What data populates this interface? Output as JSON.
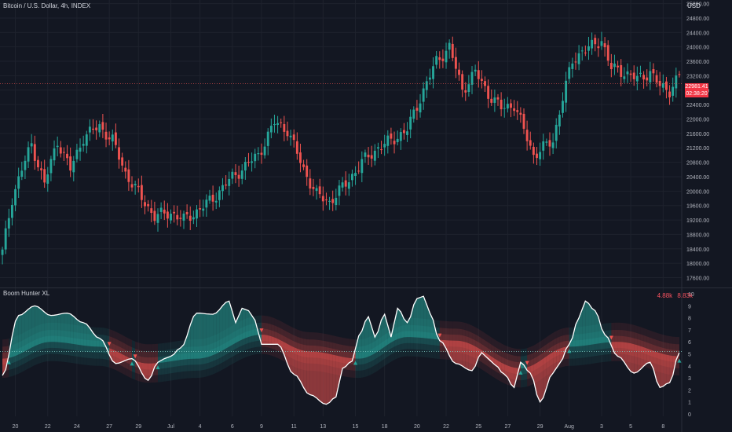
{
  "header": {
    "symbol_title": "Bitcoin / U.S. Dollar, 4h, INDEX",
    "currency": "USD"
  },
  "last_price": {
    "value": "22981.41",
    "countdown": "02:38:20",
    "color": "#f23645"
  },
  "indicator": {
    "title": "Boom Hunter XL",
    "value1": "4.88k",
    "value2": "8.83k",
    "value1_color": "#f7525f",
    "value2_color": "#f7525f"
  },
  "colors": {
    "background": "#131722",
    "up": "#26a69a",
    "down": "#ef5350",
    "grid": "#1e222d",
    "text": "#b2b5be"
  },
  "chart_data": [
    {
      "type": "candlestick",
      "title": "Bitcoin / U.S. Dollar, 4h, INDEX",
      "y_ticks": [
        17600,
        18000,
        18400,
        18800,
        19200,
        19600,
        20000,
        20400,
        20800,
        21200,
        21600,
        22000,
        22400,
        22800,
        23200,
        23600,
        24000,
        24400,
        24800,
        25200
      ],
      "y_tick_labels": [
        "17600.00",
        "18000.00",
        "18400.00",
        "18800.00",
        "19200.00",
        "19600.00",
        "20000.00",
        "20400.00",
        "20800.00",
        "21200.00",
        "21600.00",
        "22000.00",
        "22400.00",
        "22800.00",
        "23200.00",
        "23600.00",
        "24000.00",
        "24400.00",
        "24800.00",
        "25200.00"
      ],
      "ylim": [
        17350,
        25300
      ],
      "x_tick_labels": [
        "20",
        "22",
        "24",
        "27",
        "29",
        "Jul",
        "4",
        "6",
        "9",
        "11",
        "13",
        "15",
        "18",
        "20",
        "22",
        "25",
        "27",
        "29",
        "Aug",
        "3",
        "5",
        "8"
      ],
      "close_anchors": [
        [
          0,
          18300
        ],
        [
          3,
          19800
        ],
        [
          6,
          20600
        ],
        [
          9,
          21300
        ],
        [
          13,
          20200
        ],
        [
          17,
          21400
        ],
        [
          21,
          20600
        ],
        [
          25,
          21500
        ],
        [
          30,
          21800
        ],
        [
          34,
          21400
        ],
        [
          38,
          20500
        ],
        [
          43,
          19800
        ],
        [
          47,
          19300
        ],
        [
          52,
          19400
        ],
        [
          56,
          19200
        ],
        [
          61,
          19500
        ],
        [
          65,
          19800
        ],
        [
          70,
          20300
        ],
        [
          75,
          20700
        ],
        [
          79,
          21000
        ],
        [
          84,
          21900
        ],
        [
          88,
          21700
        ],
        [
          93,
          20600
        ],
        [
          97,
          19900
        ],
        [
          101,
          19700
        ],
        [
          106,
          20200
        ],
        [
          111,
          20800
        ],
        [
          116,
          21200
        ],
        [
          120,
          21400
        ],
        [
          125,
          21700
        ],
        [
          130,
          22800
        ],
        [
          134,
          23600
        ],
        [
          138,
          24000
        ],
        [
          142,
          22800
        ],
        [
          146,
          23300
        ],
        [
          150,
          22700
        ],
        [
          154,
          22300
        ],
        [
          158,
          22400
        ],
        [
          161,
          21700
        ],
        [
          164,
          21000
        ],
        [
          167,
          21200
        ],
        [
          170,
          21400
        ],
        [
          173,
          22600
        ],
        [
          176,
          23600
        ],
        [
          179,
          23900
        ],
        [
          182,
          24000
        ],
        [
          185,
          24200
        ],
        [
          188,
          23400
        ],
        [
          192,
          23300
        ],
        [
          196,
          23100
        ],
        [
          200,
          23300
        ],
        [
          203,
          22900
        ],
        [
          206,
          22800
        ],
        [
          209,
          23200
        ]
      ],
      "last_price": 22981.41
    },
    {
      "type": "area",
      "title": "Boom Hunter XL",
      "y_ticks": [
        0,
        1,
        2,
        3,
        4,
        5,
        6,
        7,
        8,
        9,
        10
      ],
      "ylim": [
        -0.2,
        10.4
      ],
      "series": [
        {
          "name": "",
          "role": "oscillator",
          "x": [
            0,
            5,
            10,
            15,
            20,
            25,
            30,
            35,
            40,
            45,
            48,
            50,
            52,
            55,
            60,
            65,
            70,
            72,
            74,
            76,
            78,
            80,
            85,
            90,
            95,
            100,
            103,
            105,
            108,
            110,
            113,
            115,
            118,
            120,
            122,
            125,
            128,
            130,
            132,
            135,
            140,
            145,
            148,
            150,
            152,
            155,
            158,
            160,
            163,
            166,
            170,
            172,
            175,
            178,
            180,
            183,
            186,
            190,
            195,
            200,
            203,
            206,
            209
          ],
          "values": [
            3.2,
            8.2,
            9.0,
            8.2,
            8.4,
            7.6,
            6.3,
            4.2,
            4.6,
            2.8,
            4.3,
            4.6,
            4.8,
            5.5,
            8.4,
            8.3,
            9.4,
            7.6,
            8.8,
            8.6,
            7.8,
            5.8,
            5.8,
            3.3,
            1.6,
            0.8,
            1.4,
            3.8,
            4.4,
            6.5,
            8.1,
            6.4,
            8.3,
            6.4,
            8.8,
            7.6,
            9.6,
            9.8,
            8.4,
            6.1,
            4.2,
            3.6,
            5.1,
            4.6,
            4.1,
            3.3,
            2.2,
            4.3,
            3.4,
            1.0,
            3.4,
            4.2,
            5.8,
            8.0,
            9.4,
            8.6,
            6.6,
            4.8,
            3.4,
            4.3,
            2.2,
            2.6,
            5.1
          ]
        },
        {
          "name": "",
          "role": "trend",
          "x": [
            0,
            15,
            30,
            45,
            60,
            80,
            95,
            110,
            125,
            140,
            160,
            175,
            190,
            209
          ],
          "values": [
            4.6,
            6.0,
            5.6,
            4.2,
            4.6,
            6.6,
            5.2,
            4.6,
            6.4,
            6.1,
            3.8,
            5.6,
            6.0,
            4.8
          ]
        },
        {
          "name": "",
          "role": "zero_line",
          "values": [
            5.2
          ]
        }
      ]
    }
  ]
}
